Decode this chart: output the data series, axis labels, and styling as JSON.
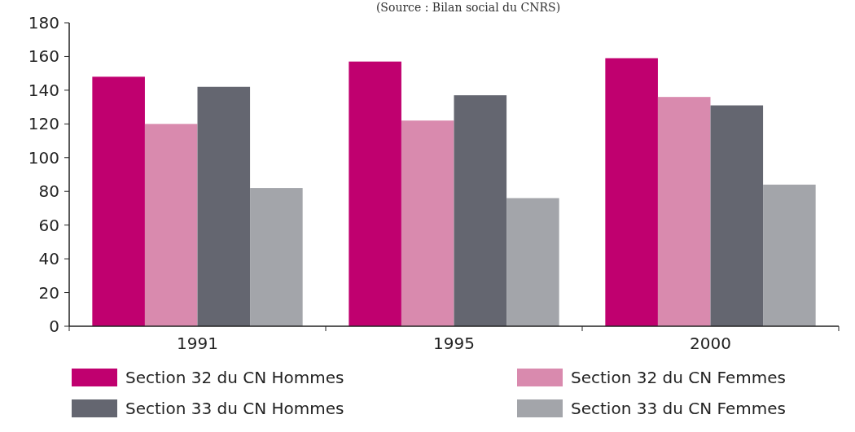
{
  "chart_data": {
    "type": "bar",
    "title": "(Source : Bilan social du CNRS)",
    "categories": [
      "1991",
      "1995",
      "2000"
    ],
    "series": [
      {
        "name": "Section 32 du CN Hommes",
        "color": "#c0006f",
        "values": [
          148,
          157,
          159
        ]
      },
      {
        "name": "Section 32 du CN Femmes",
        "color": "#d98aae",
        "values": [
          120,
          122,
          136
        ]
      },
      {
        "name": "Section 33 du CN Hommes",
        "color": "#646670",
        "values": [
          142,
          137,
          131
        ]
      },
      {
        "name": "Section 33 du CN Femmes",
        "color": "#a3a5aa",
        "values": [
          82,
          76,
          84
        ]
      }
    ],
    "ylim": [
      0,
      180
    ],
    "yticks": [
      0,
      20,
      40,
      60,
      80,
      100,
      120,
      140,
      160,
      180
    ],
    "grid": false,
    "legend": "bottom"
  }
}
